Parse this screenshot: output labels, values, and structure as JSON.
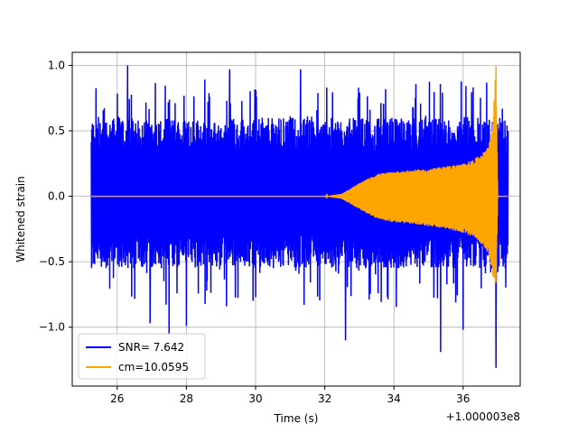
{
  "chart_data": {
    "type": "line",
    "xlabel": "Time (s)",
    "ylabel": "Whitened strain",
    "offset_label": "+1.000003e8",
    "xlim": [
      24.7,
      37.65
    ],
    "ylim": [
      -1.45,
      1.1
    ],
    "x_ticks": [
      26,
      28,
      30,
      32,
      34,
      36
    ],
    "x_tick_labels": [
      "26",
      "28",
      "30",
      "32",
      "34",
      "36"
    ],
    "y_ticks": [
      -1.0,
      -0.5,
      0.0,
      0.5,
      1.0
    ],
    "y_tick_labels": [
      "−1.0",
      "−0.5",
      "0.0",
      "0.5",
      "1.0"
    ],
    "grid": true,
    "legend_position": "lower-left",
    "series": [
      {
        "name": "SNR= 7.642",
        "color": "#0000ff",
        "style": "noise",
        "x_range": [
          25.25,
          37.3
        ],
        "typical_range": [
          -0.55,
          0.6
        ],
        "extremes": [
          {
            "x": 26.3,
            "y": 1.0
          },
          {
            "x": 26.95,
            "y": -0.97
          },
          {
            "x": 27.5,
            "y": -1.06
          },
          {
            "x": 28.0,
            "y": -0.99
          },
          {
            "x": 29.25,
            "y": 0.97
          },
          {
            "x": 31.3,
            "y": 0.97
          },
          {
            "x": 32.6,
            "y": -1.1
          },
          {
            "x": 35.35,
            "y": -1.19
          },
          {
            "x": 36.0,
            "y": -1.02
          },
          {
            "x": 36.95,
            "y": -1.31
          }
        ]
      },
      {
        "name": "cm=10.0595",
        "color": "#ffa500",
        "style": "chirp",
        "x": [
          25.25,
          32.0,
          32.5,
          33.0,
          33.5,
          34.0,
          34.5,
          35.0,
          35.5,
          36.0,
          36.3,
          36.6,
          36.75,
          36.85,
          36.95,
          37.0,
          37.3
        ],
        "envelope_upper": [
          0.0,
          0.0,
          0.02,
          0.1,
          0.17,
          0.19,
          0.2,
          0.21,
          0.23,
          0.25,
          0.28,
          0.34,
          0.4,
          0.55,
          1.0,
          0.0,
          0.0
        ],
        "envelope_lower": [
          0.0,
          0.0,
          -0.02,
          -0.1,
          -0.17,
          -0.2,
          -0.21,
          -0.23,
          -0.25,
          -0.28,
          -0.31,
          -0.38,
          -0.45,
          -0.6,
          -0.68,
          0.0,
          0.0
        ]
      }
    ]
  }
}
